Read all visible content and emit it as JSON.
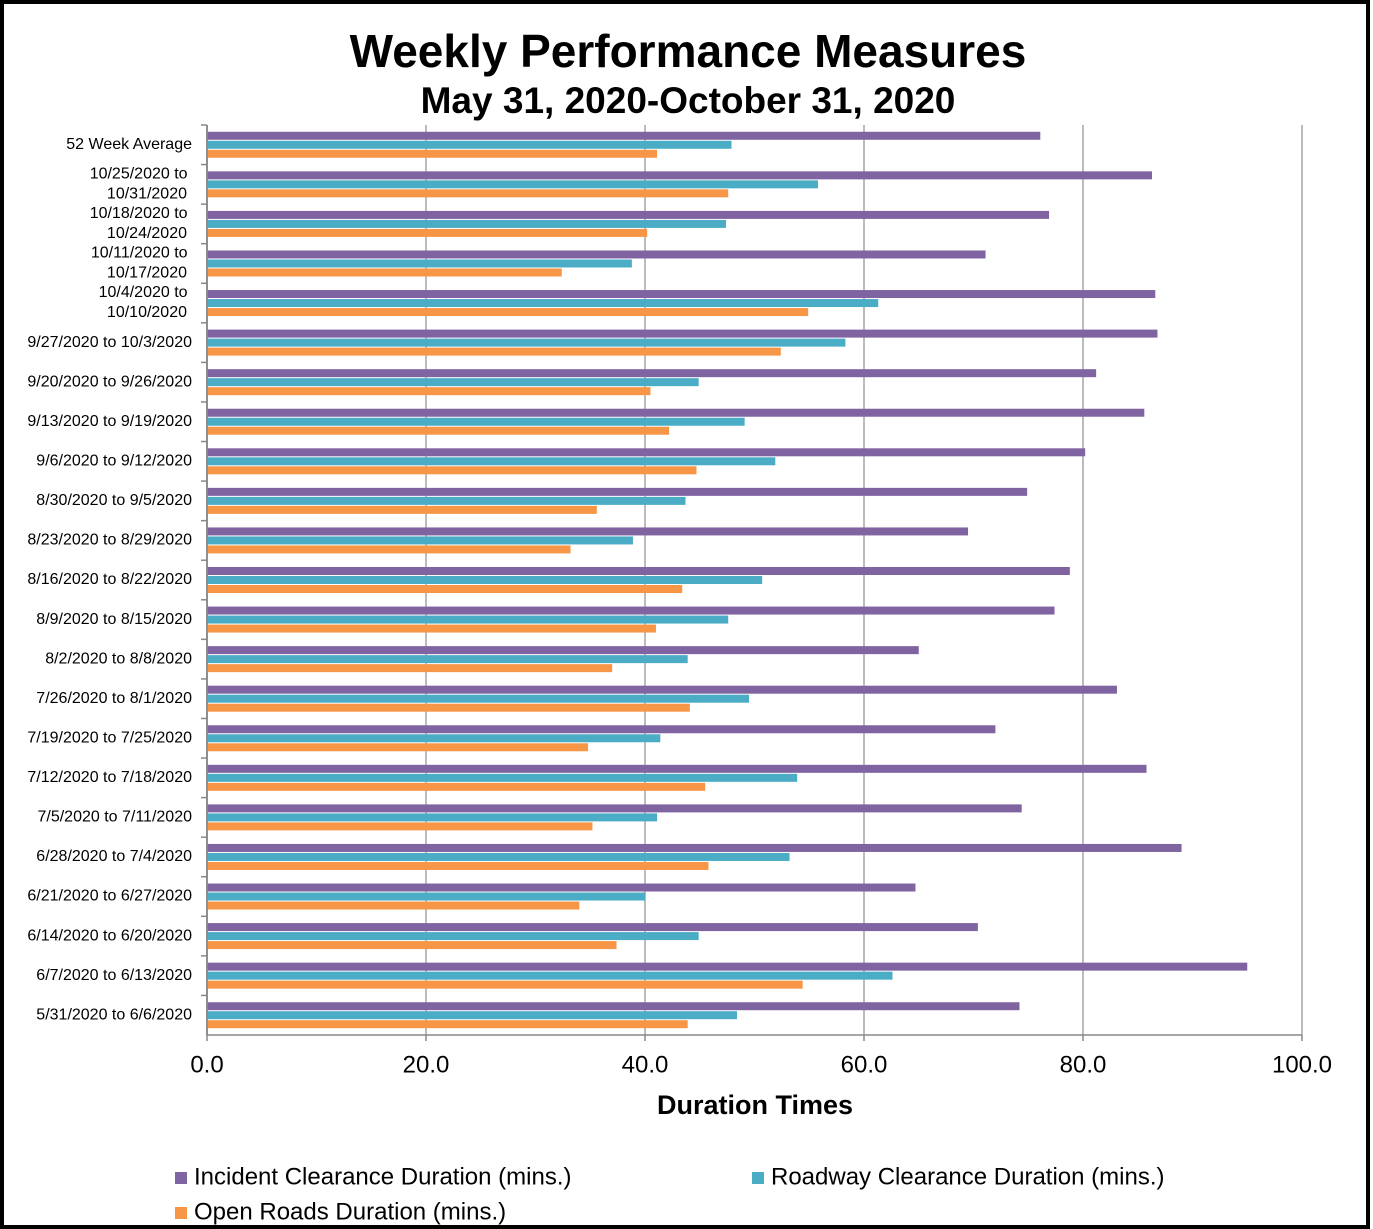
{
  "chart_data": {
    "type": "bar",
    "orientation": "horizontal",
    "title": "Weekly Performance Measures",
    "subtitle": "May 31, 2020-October 31, 2020",
    "x_label": "Duration Times",
    "categories": [
      "52 Week Average",
      "10/25/2020 to 10/31/2020",
      "10/18/2020 to 10/24/2020",
      "10/11/2020 to 10/17/2020",
      "10/4/2020 to 10/10/2020",
      "9/27/2020 to 10/3/2020",
      "9/20/2020 to 9/26/2020",
      "9/13/2020 to 9/19/2020",
      "9/6/2020 to 9/12/2020",
      "8/30/2020 to 9/5/2020",
      "8/23/2020 to 8/29/2020",
      "8/16/2020 to 8/22/2020",
      "8/9/2020 to 8/15/2020",
      "8/2/2020 to 8/8/2020",
      "7/26/2020 to 8/1/2020",
      "7/19/2020 to 7/25/2020",
      "7/12/2020 to 7/18/2020",
      "7/5/2020 to 7/11/2020",
      "6/28/2020 to 7/4/2020",
      "6/21/2020 to 6/27/2020",
      "6/14/2020 to 6/20/2020",
      "6/7/2020 to 6/13/2020",
      "5/31/2020 to 6/6/2020"
    ],
    "series": [
      {
        "name": "Incident Clearance Duration (mins.)",
        "color": "#8064a2",
        "values": [
          76.1,
          86.3,
          76.9,
          71.1,
          86.6,
          86.8,
          81.2,
          85.6,
          80.2,
          74.9,
          69.5,
          78.8,
          77.4,
          65.0,
          83.1,
          72.0,
          85.8,
          74.4,
          89.0,
          64.7,
          70.4,
          95.0,
          74.2
        ]
      },
      {
        "name": "Roadway Clearance Duration (mins.)",
        "color": "#4bacc6",
        "values": [
          47.9,
          55.8,
          47.4,
          38.8,
          61.3,
          58.3,
          44.9,
          49.1,
          51.9,
          43.7,
          38.9,
          50.7,
          47.6,
          43.9,
          49.5,
          41.4,
          53.9,
          41.1,
          53.2,
          40.0,
          44.9,
          62.6,
          48.4
        ]
      },
      {
        "name": "Open Roads Duration (mins.)",
        "color": "#f79646",
        "values": [
          41.1,
          47.6,
          40.2,
          32.4,
          54.9,
          52.4,
          40.5,
          42.2,
          44.7,
          35.6,
          33.2,
          43.4,
          41.0,
          37.0,
          44.1,
          34.8,
          45.5,
          35.2,
          45.8,
          34.0,
          37.4,
          54.4,
          43.9
        ]
      }
    ],
    "xlim": [
      0,
      100
    ],
    "xticks": [
      {
        "value": 0,
        "label": "0.0"
      },
      {
        "value": 20,
        "label": "20.0"
      },
      {
        "value": 40,
        "label": "40.0"
      },
      {
        "value": 60,
        "label": "60.0"
      },
      {
        "value": 80,
        "label": "80.0"
      },
      {
        "value": 100,
        "label": "100.0"
      }
    ],
    "grid": true
  }
}
